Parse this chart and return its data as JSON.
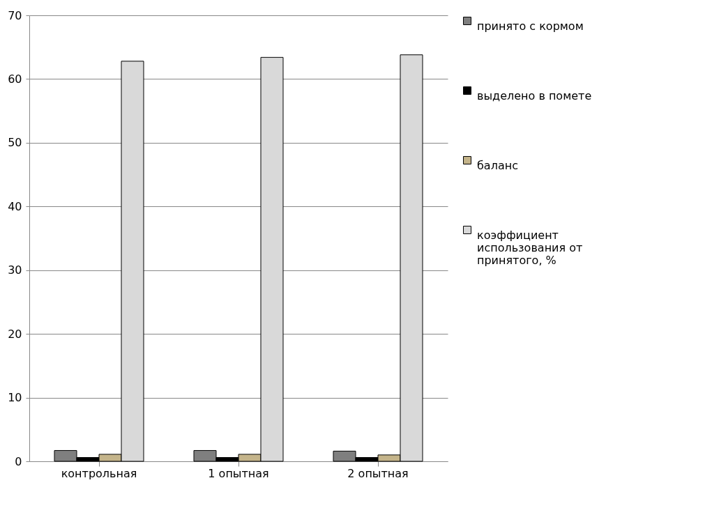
{
  "chart_data": {
    "type": "bar",
    "categories": [
      "контрольная",
      "1 опытная",
      "2 опытная"
    ],
    "series": [
      {
        "name": "принято с кормом",
        "color": "#7f7f7f",
        "values": [
          1.7,
          1.7,
          1.6
        ]
      },
      {
        "name": "выделено в помете",
        "color": "#000000",
        "values": [
          0.6,
          0.6,
          0.6
        ]
      },
      {
        "name": "баланс",
        "color": "#c4b48a",
        "values": [
          1.1,
          1.1,
          1.0
        ]
      },
      {
        "name": "коэффициент использования от принятого, %",
        "color": "#d9d9d9",
        "values": [
          62.8,
          63.4,
          63.8
        ]
      }
    ],
    "ylim": [
      0,
      70
    ],
    "yticks": [
      0,
      10,
      20,
      30,
      40,
      50,
      60,
      70
    ],
    "grid": "y",
    "legend": "right"
  }
}
